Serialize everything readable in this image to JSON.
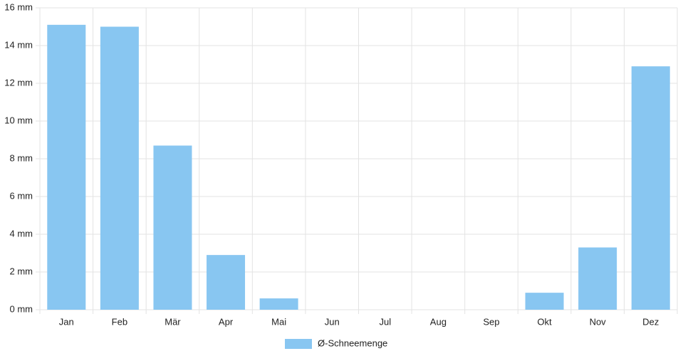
{
  "chart_data": {
    "type": "bar",
    "categories": [
      "Jan",
      "Feb",
      "Mär",
      "Apr",
      "Mai",
      "Jun",
      "Jul",
      "Aug",
      "Sep",
      "Okt",
      "Nov",
      "Dez"
    ],
    "series": [
      {
        "name": "Ø-Schneemenge",
        "color": "#88c6f1",
        "values": [
          15.1,
          15.0,
          8.7,
          2.9,
          0.6,
          0,
          0,
          0,
          0,
          0.9,
          3.3,
          12.9
        ]
      }
    ],
    "ylim": [
      0,
      16
    ],
    "yticks": [
      {
        "value": 0,
        "label": "0 mm"
      },
      {
        "value": 2,
        "label": "2 mm"
      },
      {
        "value": 4,
        "label": "4 mm"
      },
      {
        "value": 6,
        "label": "6 mm"
      },
      {
        "value": 8,
        "label": "8 mm"
      },
      {
        "value": 10,
        "label": "10 mm"
      },
      {
        "value": 12,
        "label": "12 mm"
      },
      {
        "value": 14,
        "label": "14 mm"
      },
      {
        "value": 16,
        "label": "16 mm"
      }
    ],
    "grid": true,
    "legend": "bottom"
  }
}
